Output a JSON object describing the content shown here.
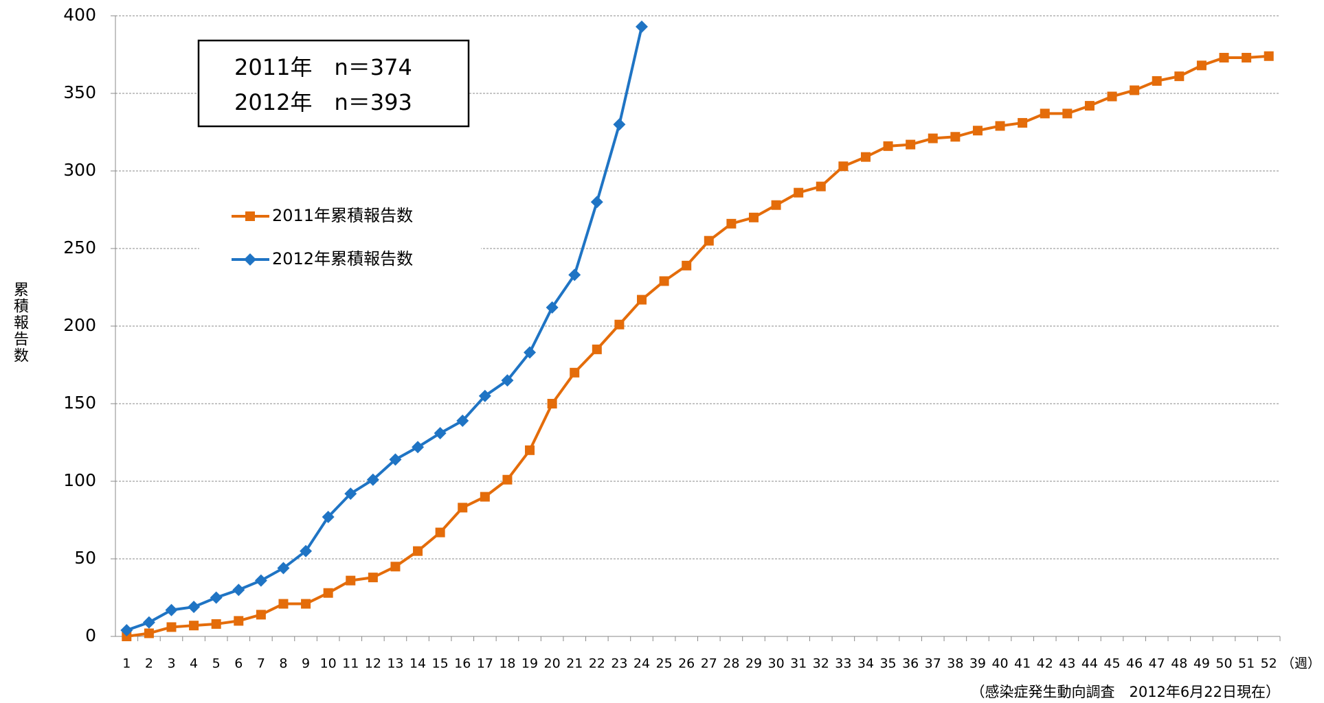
{
  "chart_data": {
    "type": "line",
    "y_label": "累積報告数",
    "x_unit": "（週）",
    "source": "（感染症発生動向調査　2012年6月22日現在）",
    "annotations": [
      "2011年　n＝374",
      "2012年　n＝393"
    ],
    "categories": [
      "1",
      "2",
      "3",
      "4",
      "5",
      "6",
      "7",
      "8",
      "9",
      "10",
      "11",
      "12",
      "13",
      "14",
      "15",
      "16",
      "17",
      "18",
      "19",
      "20",
      "21",
      "22",
      "23",
      "24",
      "25",
      "26",
      "27",
      "28",
      "29",
      "30",
      "31",
      "32",
      "33",
      "34",
      "35",
      "36",
      "37",
      "38",
      "39",
      "40",
      "41",
      "42",
      "43",
      "44",
      "45",
      "46",
      "47",
      "48",
      "49",
      "50",
      "51",
      "52"
    ],
    "series": [
      {
        "name": "2011年累積報告数",
        "color": "#e46c0a",
        "marker": "square",
        "values": [
          0,
          2,
          6,
          7,
          8,
          10,
          14,
          21,
          21,
          28,
          36,
          38,
          45,
          55,
          67,
          83,
          90,
          101,
          120,
          150,
          170,
          185,
          201,
          217,
          229,
          239,
          255,
          266,
          270,
          278,
          286,
          290,
          303,
          309,
          316,
          317,
          321,
          322,
          326,
          329,
          331,
          337,
          337,
          342,
          348,
          352,
          358,
          361,
          368,
          373,
          373,
          374
        ]
      },
      {
        "name": "2012年累積報告数",
        "color": "#1f74c4",
        "marker": "diamond",
        "values": [
          4,
          9,
          17,
          19,
          25,
          30,
          36,
          44,
          55,
          77,
          92,
          101,
          114,
          122,
          131,
          139,
          155,
          165,
          183,
          212,
          233,
          280,
          330,
          393,
          null,
          null,
          null,
          null,
          null,
          null,
          null,
          null,
          null,
          null,
          null,
          null,
          null,
          null,
          null,
          null,
          null,
          null,
          null,
          null,
          null,
          null,
          null,
          null,
          null,
          null,
          null,
          null
        ]
      }
    ],
    "ylim": [
      0,
      400
    ],
    "yticks": [
      0,
      50,
      100,
      150,
      200,
      250,
      300,
      350,
      400
    ],
    "grid": true
  }
}
